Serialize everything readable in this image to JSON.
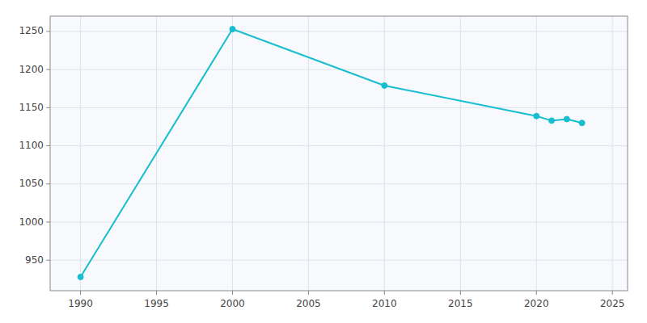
{
  "chart_data": {
    "type": "line",
    "x": [
      1990,
      2000,
      2010,
      2020,
      2021,
      2022,
      2023
    ],
    "values": [
      928,
      1253,
      1179,
      1139,
      1133,
      1135,
      1130
    ],
    "color": "#17becf",
    "marker": "circle",
    "xlim": [
      1988,
      2026
    ],
    "ylim": [
      910,
      1270
    ],
    "xticks": [
      1990,
      1995,
      2000,
      2005,
      2010,
      2015,
      2020,
      2025
    ],
    "yticks": [
      950,
      1000,
      1050,
      1100,
      1150,
      1200,
      1250
    ],
    "grid": true
  }
}
